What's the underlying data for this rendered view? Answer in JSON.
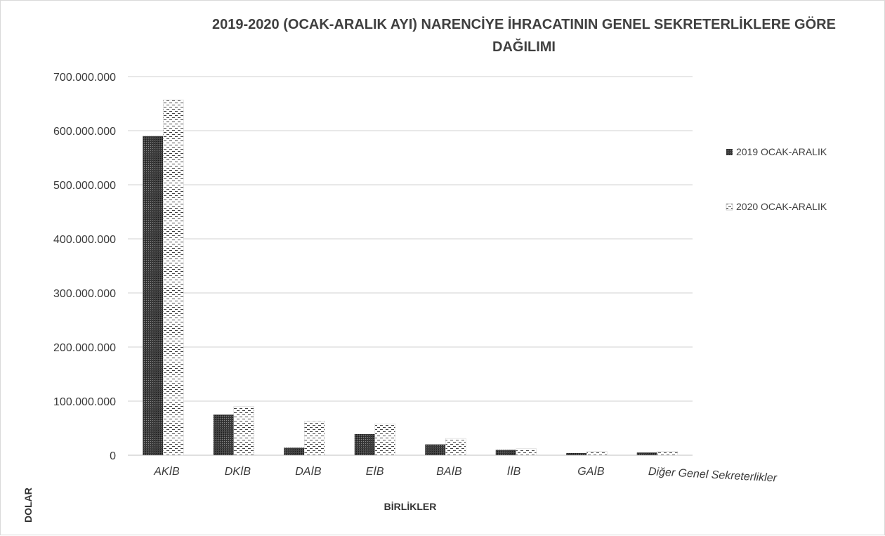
{
  "chart_data": {
    "type": "bar",
    "title_line1": "2019-2020 (OCAK-ARALIK AYI) NARENCİYE İHRACATININ GENEL SEKRETERLİKLERE GÖRE",
    "title_line2": "DAĞILIMI",
    "xlabel": "BİRLİKLER",
    "ylabel": "DOLAR",
    "ylim": [
      0,
      700000000
    ],
    "y_ticks": [
      "0",
      "100.000.000",
      "200.000.000",
      "300.000.000",
      "400.000.000",
      "500.000.000",
      "600.000.000",
      "700.000.000"
    ],
    "categories": [
      "AKİB",
      "DKİB",
      "DAİB",
      "EİB",
      "BAİB",
      "İİB",
      "GAİB",
      "Diğer Genel Sekreterlikler"
    ],
    "series": [
      {
        "name": "2019 OCAK-ARALIK",
        "values": [
          590000000,
          75000000,
          14000000,
          39000000,
          20000000,
          10000000,
          4000000,
          5000000
        ],
        "pattern": "crosshatch-dark"
      },
      {
        "name": "2020 OCAK-ARALIK",
        "values": [
          657000000,
          90000000,
          63000000,
          58000000,
          31000000,
          12000000,
          7000000,
          7000000
        ],
        "pattern": "dashes-light"
      }
    ],
    "grid": true,
    "legend_position": "right"
  }
}
